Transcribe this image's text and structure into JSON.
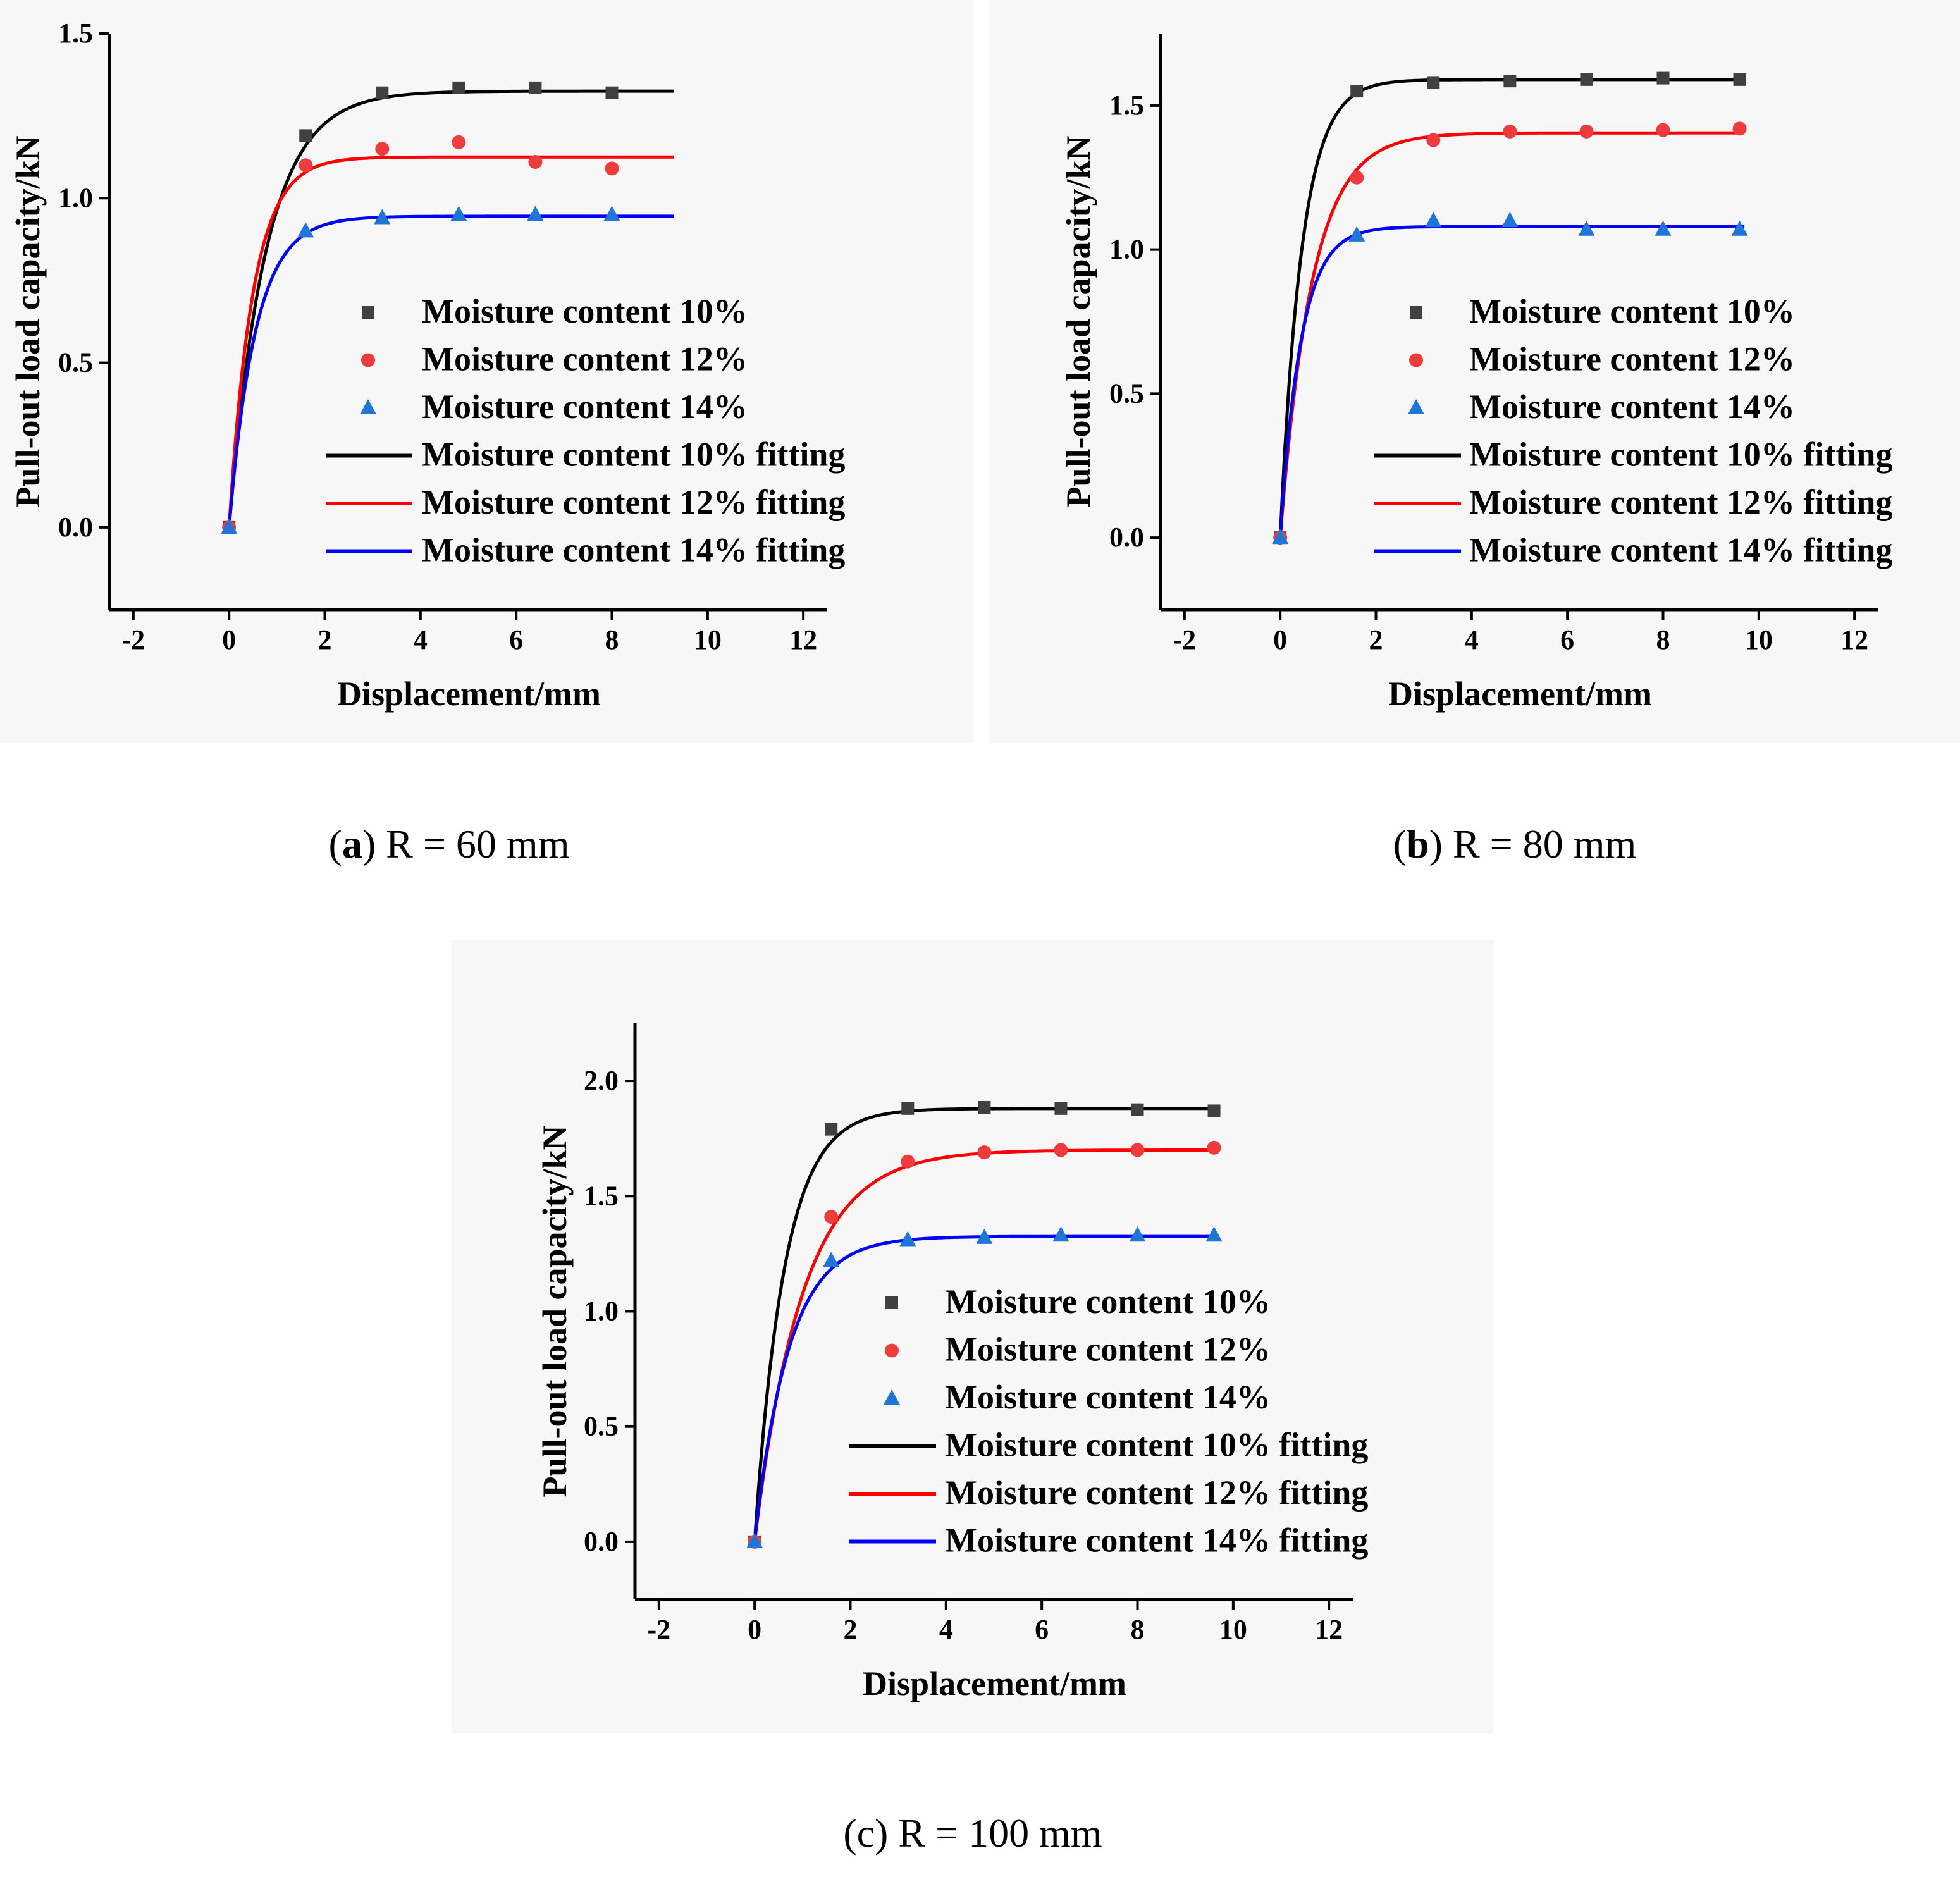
{
  "figure": {
    "background": "#ffffff",
    "panel_background": "#f7f7f7"
  },
  "colors": {
    "mc10_marker": "#404040",
    "mc12_marker": "#ee3c3c",
    "mc14_marker": "#1f75d8",
    "mc10_line": "#000000",
    "mc12_line": "#ff0000",
    "mc14_line": "#0000ff"
  },
  "chart_data": [
    {
      "id": "a",
      "type": "scatter",
      "caption": {
        "label": "a",
        "prefix": "(",
        "suffix": ")",
        "text": " R = 60 mm"
      },
      "xlabel": "Displacement/mm",
      "ylabel": "Pull-out load capacity/kN",
      "xlim": [
        -2.5,
        12.5
      ],
      "ylim": [
        -0.25,
        1.5
      ],
      "xticks": [
        -2,
        0,
        2,
        4,
        6,
        8,
        10,
        12
      ],
      "xtick_labels": [
        "-2",
        "0",
        "2",
        "4",
        "6",
        "8",
        "10",
        "12"
      ],
      "yticks": [
        0.0,
        0.5,
        1.0,
        1.5
      ],
      "ytick_labels": [
        "0.0",
        "0.5",
        "1.0",
        "1.5"
      ],
      "legend_position": "center-right",
      "series": [
        {
          "name": "Moisture content 10%",
          "marker": "square",
          "color_key": "mc10_marker",
          "x": [
            0,
            1.6,
            3.2,
            4.8,
            6.4,
            8.0
          ],
          "y": [
            0.0,
            1.19,
            1.32,
            1.335,
            1.335,
            1.32
          ]
        },
        {
          "name": "Moisture content 12%",
          "marker": "circle",
          "color_key": "mc12_marker",
          "x": [
            0,
            1.6,
            3.2,
            4.8,
            6.4,
            8.0
          ],
          "y": [
            0.0,
            1.1,
            1.15,
            1.17,
            1.11,
            1.09
          ]
        },
        {
          "name": "Moisture content 14%",
          "marker": "triangle",
          "color_key": "mc14_marker",
          "x": [
            0,
            1.6,
            3.2,
            4.8,
            6.4,
            8.0
          ],
          "y": [
            0.0,
            0.9,
            0.94,
            0.95,
            0.95,
            0.95
          ]
        }
      ],
      "fits": [
        {
          "name": "Moisture content 10% fitting",
          "color_key": "mc10_line",
          "asymptote": 1.325,
          "rate": 1.3,
          "x_max": 9.3
        },
        {
          "name": "Moisture content 12% fitting",
          "color_key": "mc12_line",
          "asymptote": 1.125,
          "rate": 2.0,
          "x_max": 9.3
        },
        {
          "name": "Moisture content 14% fitting",
          "color_key": "mc14_line",
          "asymptote": 0.945,
          "rate": 1.8,
          "x_max": 9.3
        }
      ]
    },
    {
      "id": "b",
      "type": "scatter",
      "caption": {
        "label": "b",
        "prefix": "(",
        "suffix": ")",
        "text": " R = 80 mm"
      },
      "xlabel": "Displacement/mm",
      "ylabel": "Pull-out load capacity/kN",
      "xlim": [
        -2.5,
        12.5
      ],
      "ylim": [
        -0.25,
        1.75
      ],
      "xticks": [
        -2,
        0,
        2,
        4,
        6,
        8,
        10,
        12
      ],
      "xtick_labels": [
        "-2",
        "0",
        "2",
        "4",
        "6",
        "8",
        "10",
        "12"
      ],
      "yticks": [
        0.0,
        0.5,
        1.0,
        1.5
      ],
      "ytick_labels": [
        "0.0",
        "0.5",
        "1.0",
        "1.5"
      ],
      "legend_position": "center-right",
      "series": [
        {
          "name": "Moisture content 10%",
          "marker": "square",
          "color_key": "mc10_marker",
          "x": [
            0,
            1.6,
            3.2,
            4.8,
            6.4,
            8.0,
            9.6
          ],
          "y": [
            0.0,
            1.55,
            1.58,
            1.585,
            1.59,
            1.595,
            1.59
          ]
        },
        {
          "name": "Moisture content 12%",
          "marker": "circle",
          "color_key": "mc12_marker",
          "x": [
            0,
            1.6,
            3.2,
            4.8,
            6.4,
            8.0,
            9.6
          ],
          "y": [
            0.0,
            1.25,
            1.38,
            1.41,
            1.41,
            1.415,
            1.42
          ]
        },
        {
          "name": "Moisture content 14%",
          "marker": "triangle",
          "color_key": "mc14_marker",
          "x": [
            0,
            1.6,
            3.2,
            4.8,
            6.4,
            8.0,
            9.6
          ],
          "y": [
            0.0,
            1.05,
            1.1,
            1.1,
            1.07,
            1.07,
            1.07
          ]
        }
      ],
      "fits": [
        {
          "name": "Moisture content 10% fitting",
          "color_key": "mc10_line",
          "asymptote": 1.59,
          "rate": 2.2,
          "x_max": 9.7
        },
        {
          "name": "Moisture content 12% fitting",
          "color_key": "mc12_line",
          "asymptote": 1.405,
          "rate": 1.5,
          "x_max": 9.7
        },
        {
          "name": "Moisture content 14% fitting",
          "color_key": "mc14_line",
          "asymptote": 1.08,
          "rate": 2.3,
          "x_max": 9.7
        }
      ]
    },
    {
      "id": "c",
      "type": "scatter",
      "caption": {
        "label": "c",
        "prefix": "(",
        "suffix": ")",
        "text": " R = 100 mm"
      },
      "xlabel": "Displacement/mm",
      "ylabel": "Pull-out load capacity/kN",
      "xlim": [
        -2.5,
        12.5
      ],
      "ylim": [
        -0.25,
        2.25
      ],
      "xticks": [
        -2,
        0,
        2,
        4,
        6,
        8,
        10,
        12
      ],
      "xtick_labels": [
        "-2",
        "0",
        "2",
        "4",
        "6",
        "8",
        "10",
        "12"
      ],
      "yticks": [
        0.0,
        0.5,
        1.0,
        1.5,
        2.0
      ],
      "ytick_labels": [
        "0.0",
        "0.5",
        "1.0",
        "1.5",
        "2.0"
      ],
      "legend_position": "center-right",
      "series": [
        {
          "name": "Moisture content 10%",
          "marker": "square",
          "color_key": "mc10_marker",
          "x": [
            0,
            1.6,
            3.2,
            4.8,
            6.4,
            8.0,
            9.6
          ],
          "y": [
            0.0,
            1.79,
            1.88,
            1.885,
            1.88,
            1.875,
            1.87
          ]
        },
        {
          "name": "Moisture content 12%",
          "marker": "circle",
          "color_key": "mc12_marker",
          "x": [
            0,
            1.6,
            3.2,
            4.8,
            6.4,
            8.0,
            9.6
          ],
          "y": [
            0.0,
            1.41,
            1.65,
            1.69,
            1.7,
            1.7,
            1.71
          ]
        },
        {
          "name": "Moisture content 14%",
          "marker": "triangle",
          "color_key": "mc14_marker",
          "x": [
            0,
            1.6,
            3.2,
            4.8,
            6.4,
            8.0,
            9.6
          ],
          "y": [
            0.0,
            1.22,
            1.31,
            1.32,
            1.33,
            1.33,
            1.33
          ]
        }
      ],
      "fits": [
        {
          "name": "Moisture content 10% fitting",
          "color_key": "mc10_line",
          "asymptote": 1.88,
          "rate": 1.6,
          "x_max": 9.7
        },
        {
          "name": "Moisture content 12% fitting",
          "color_key": "mc12_line",
          "asymptote": 1.7,
          "rate": 1.0,
          "x_max": 9.7
        },
        {
          "name": "Moisture content 14% fitting",
          "color_key": "mc14_line",
          "asymptote": 1.325,
          "rate": 1.4,
          "x_max": 9.7
        }
      ]
    }
  ]
}
